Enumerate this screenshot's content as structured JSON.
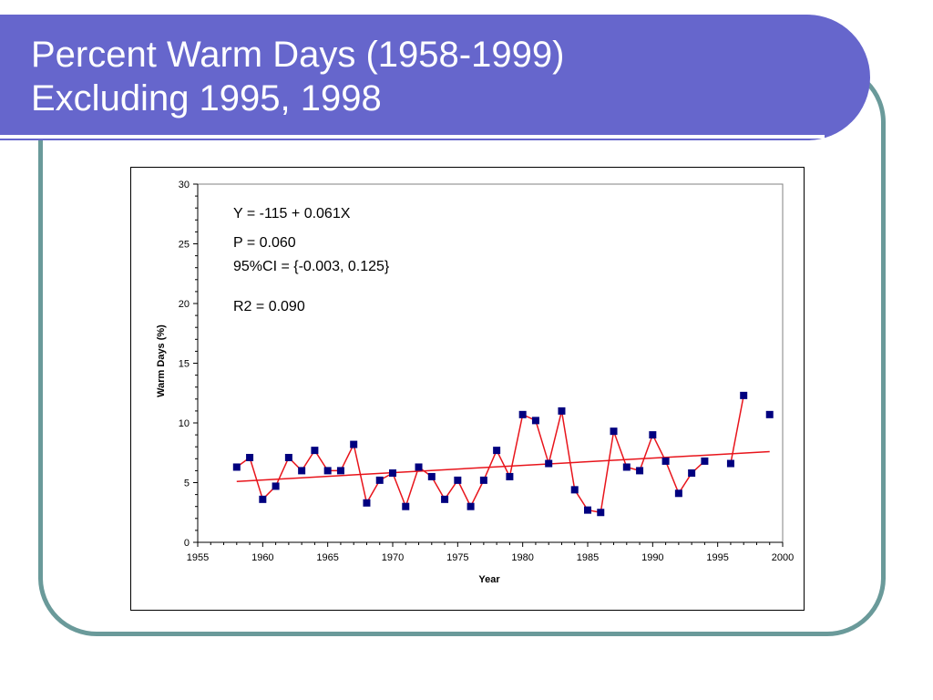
{
  "slide": {
    "title_line1": "Percent Warm Days (1958-1999)",
    "title_line2": "Excluding 1995, 1998",
    "colors": {
      "banner": "#6666cc",
      "frame": "#6a9a9a",
      "title_text": "#ffffff"
    }
  },
  "chart_data": {
    "type": "line",
    "title": "",
    "xlabel": "Year",
    "ylabel": "Warm Days (%)",
    "xlim": [
      1955,
      2000
    ],
    "ylim": [
      0,
      30
    ],
    "x_ticks": [
      1955,
      1960,
      1965,
      1970,
      1975,
      1980,
      1985,
      1990,
      1995,
      2000
    ],
    "y_ticks": [
      0,
      5,
      10,
      15,
      20,
      25,
      30
    ],
    "grid": false,
    "legend": "none",
    "series": [
      {
        "color": "#e8141b",
        "marker": "square",
        "marker_color": "#00007f",
        "segments": [
          {
            "x": [
              1958,
              1959,
              1960,
              1961,
              1962,
              1963,
              1964,
              1965,
              1966,
              1967,
              1968,
              1969,
              1970,
              1971,
              1972,
              1973,
              1974,
              1975,
              1976,
              1977,
              1978,
              1979,
              1980,
              1981,
              1982,
              1983,
              1984,
              1985,
              1986,
              1987,
              1988,
              1989,
              1990,
              1991,
              1992,
              1993,
              1994
            ],
            "y": [
              6.3,
              7.1,
              3.6,
              4.7,
              7.1,
              6.0,
              7.7,
              6.0,
              6.0,
              8.2,
              3.3,
              5.2,
              5.8,
              3.0,
              6.3,
              5.5,
              3.6,
              5.2,
              3.0,
              5.2,
              7.7,
              5.5,
              10.7,
              10.2,
              6.6,
              11.0,
              4.4,
              2.7,
              2.5,
              9.3,
              6.3,
              6.0,
              9.0,
              6.8,
              4.1,
              5.8,
              6.8
            ]
          },
          {
            "x": [
              1996,
              1997
            ],
            "y": [
              6.6,
              12.3
            ]
          }
        ],
        "isolated_points": {
          "x": [
            1999
          ],
          "y": [
            10.7
          ]
        }
      },
      {
        "type": "trendline",
        "color": "#e8141b",
        "x": [
          1958,
          1999
        ],
        "y": [
          5.1,
          7.6
        ]
      }
    ],
    "annotations": [
      "Y = -115 + 0.061X",
      "P = 0.060",
      "95%CI = {-0.003, 0.125}",
      "R2 = 0.090"
    ]
  }
}
